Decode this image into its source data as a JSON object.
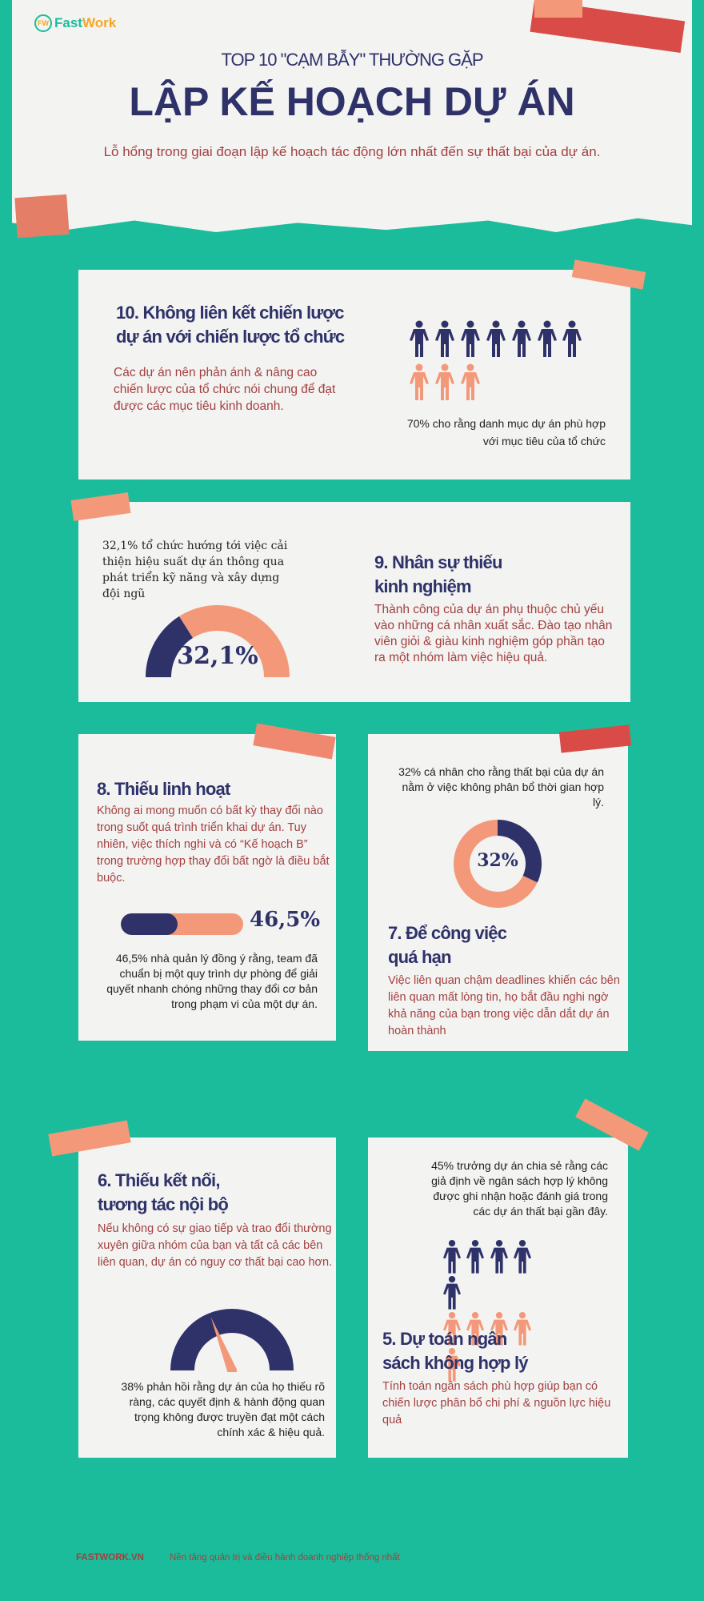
{
  "brand": {
    "logo_mark": "FW",
    "name_a": "Fast",
    "name_b": "Work"
  },
  "header": {
    "kicker": "TOP 10 \"CẠM BẪY\" THƯỜNG GẶP",
    "title": "LẬP KẾ HOẠCH DỰ ÁN",
    "subtitle": "Lỗ hổng trong giai đoạn lập kế hoạch tác động lớn nhất đến sự thất bại của dự án."
  },
  "colors": {
    "teal": "#1bbc9b",
    "navy": "#2e3269",
    "salmon": "#f4987a",
    "red": "#d94b47",
    "text_red": "#a3403f"
  },
  "items": [
    {
      "title_1": "10. Không liên kết chiến lược",
      "title_2": "dự án với chiến lược tổ chức",
      "desc": "Các dự án nên phản ánh & nâng cao chiến lược của tổ chức nói chung để đạt được các mục tiêu kinh doanh.",
      "stat": "70% cho rằng danh mục dự án phù hợp với mục tiêu của tổ chức",
      "pictogram": {
        "navy": 7,
        "salmon": 3
      }
    },
    {
      "title_1": "9. Nhân sự thiếu",
      "title_2": "kinh nghiệm",
      "desc": "Thành công của dự án phụ thuộc chủ yếu vào những cá nhân xuất sắc. Đào tạo nhân viên giỏi & giàu kinh nghiệm góp phần tạo ra một nhóm làm việc hiệu quả.",
      "stat": "32,1% tổ chức hướng tới việc cải thiện hiệu suất dự án thông qua phát triển kỹ năng và xây dựng đội ngũ",
      "value_label": "32,1%",
      "value": 32.1
    },
    {
      "title_1": "8. Thiếu linh hoạt",
      "desc": "Không ai mong muốn có bất kỳ thay đổi nào trong suốt quá trình triển khai dự án. Tuy nhiên, việc thích nghi và có “Kế hoạch B” trong trường hợp thay đổi bất ngờ là điều bắt buộc.",
      "stat": "46,5% nhà quản lý đồng ý rằng, team đã chuẩn bị một quy trình dự phòng để giải quyết nhanh chóng những thay đổi cơ bản trong phạm vi của một dự án.",
      "value_label": "46,5%",
      "value": 46.5
    },
    {
      "title_1": "7. Để công việc",
      "title_2": "quá hạn",
      "desc": "Việc liên quan chậm deadlines khiến các bên liên quan mất lòng tin, họ bắt đầu nghi ngờ khả năng của bạn trong việc dẫn dắt dự án hoàn thành",
      "stat": "32% cá nhân cho rằng thất bại của dự án nằm ở việc không phân bổ thời gian hợp lý.",
      "value_label": "32%",
      "value": 32
    },
    {
      "title_1": "6. Thiếu kết nối,",
      "title_2": "tương tác nội bộ",
      "desc": "Nếu không có sự giao tiếp và trao đổi thường xuyên giữa nhóm của bạn và tất cả các bên liên quan, dự án có nguy cơ thất bại cao hơn.",
      "stat": "38% phản hồi rằng dự án của họ thiếu rõ ràng, các quyết định & hành động quan trọng không được truyền đạt một cách chính xác & hiệu quả.",
      "value": 38
    },
    {
      "title_1": "5. Dự toán ngân",
      "title_2": "sách không hợp lý",
      "desc": "Tính toán ngân sách phù hợp giúp bạn có chiến lược phân bổ chi phí & nguồn lực hiệu quả",
      "stat": "45% trưởng dự án chia sẻ rằng các giả định về ngân sách hợp lý không được ghi nhận hoặc đánh giá trong các dự án thất bại gần đây.",
      "pictogram": {
        "navy": 5,
        "salmon": 5
      }
    }
  ],
  "footer": {
    "site": "FASTWORK.VN",
    "tagline": "Nền tảng quản trị và điều hành doanh nghiệp thống nhất"
  }
}
